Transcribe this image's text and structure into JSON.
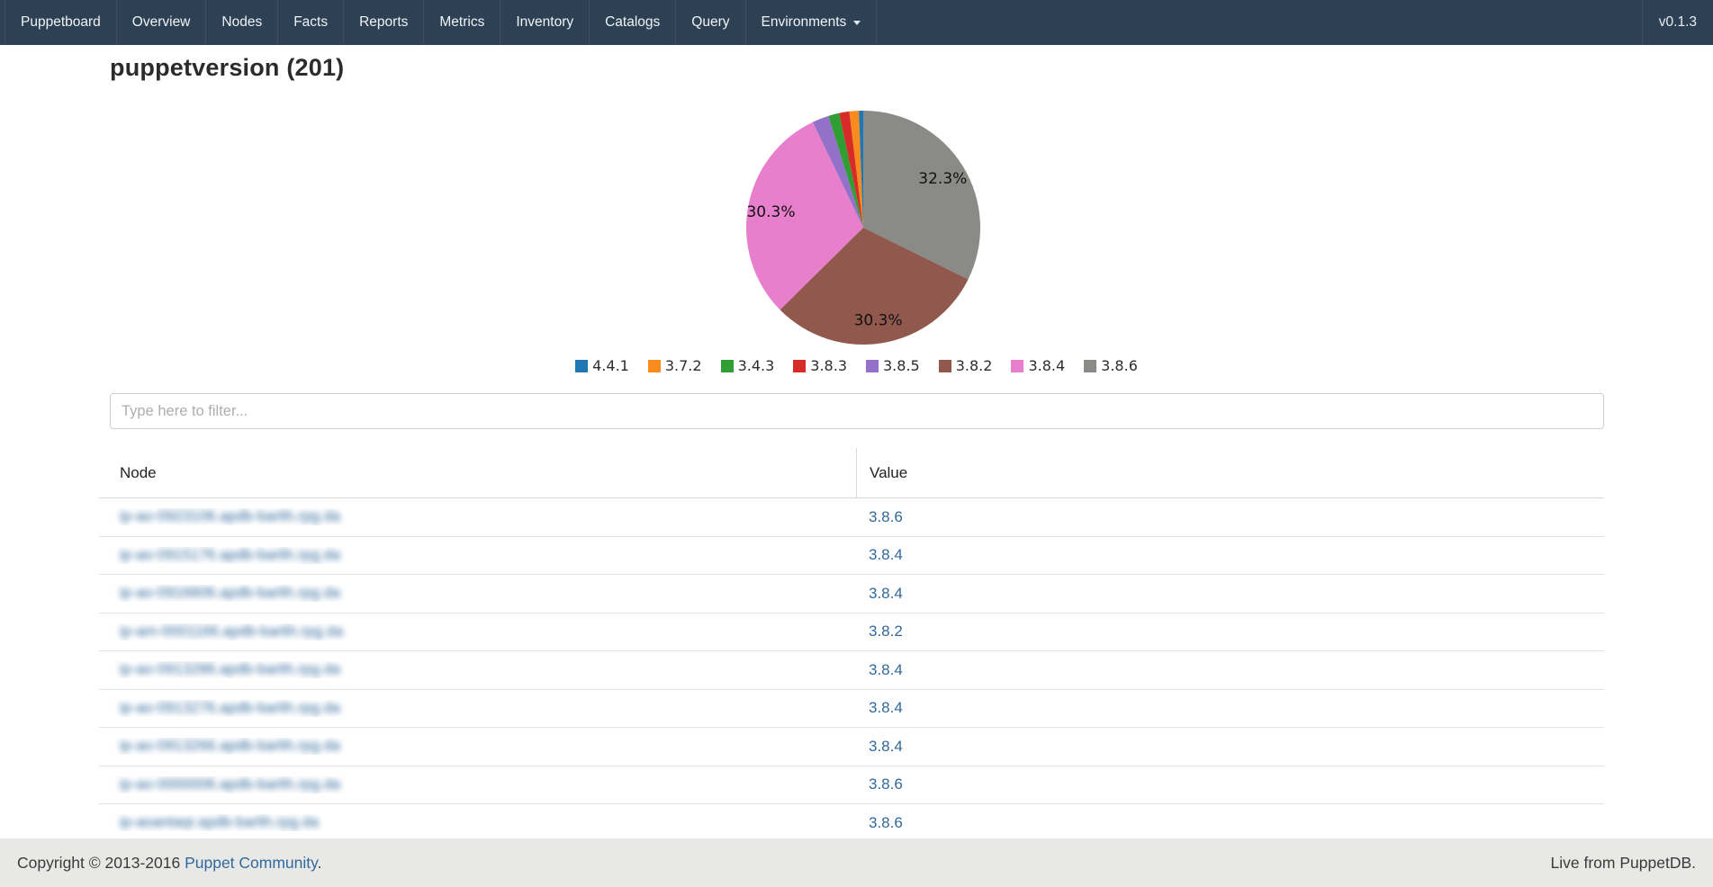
{
  "navbar": {
    "brand": "Puppetboard",
    "items": [
      "Overview",
      "Nodes",
      "Facts",
      "Reports",
      "Metrics",
      "Inventory",
      "Catalogs",
      "Query"
    ],
    "dropdown_label": "Environments",
    "version": "v0.1.3",
    "bg_color": "#2e4154",
    "divider_color": "#3d4e60"
  },
  "page": {
    "title": "puppetversion (201)"
  },
  "chart_data": {
    "type": "pie",
    "title": "",
    "legend_position": "bottom",
    "direction": "clockwise",
    "start_angle_deg": -90,
    "label_radius_fraction": 0.8,
    "slices": [
      {
        "label": "4.4.1",
        "pct": 0.6,
        "color": "#1f77b4",
        "pct_label": null
      },
      {
        "label": "3.7.2",
        "pct": 1.3,
        "color": "#f78b1d",
        "pct_label": null
      },
      {
        "label": "3.4.3",
        "pct": 1.5,
        "color": "#2f9e33",
        "pct_label": null
      },
      {
        "label": "3.8.3",
        "pct": 1.4,
        "color": "#d62b29",
        "pct_label": null
      },
      {
        "label": "3.8.5",
        "pct": 2.3,
        "color": "#9371c8",
        "pct_label": null
      },
      {
        "label": "3.8.2",
        "pct": 30.3,
        "color": "#91584d",
        "pct_label": "30.3%"
      },
      {
        "label": "3.8.4",
        "pct": 30.3,
        "color": "#e87fcc",
        "pct_label": "30.3%"
      },
      {
        "label": "3.8.6",
        "pct": 32.3,
        "color": "#8a8a87",
        "pct_label": "32.3%"
      }
    ],
    "draw_order": [
      7,
      5,
      6,
      4,
      2,
      3,
      1,
      0
    ]
  },
  "filter": {
    "placeholder": "Type here to filter..."
  },
  "table": {
    "columns": [
      "Node",
      "Value"
    ],
    "nodes_redacted": true,
    "link_color": "#31699c",
    "rows": [
      {
        "node_blurred": "ip-ao-0923106.apdb-barlih.rpg.da",
        "value": "3.8.6"
      },
      {
        "node_blurred": "ip-ao-0915176.apdb-barlih.rpg.da",
        "value": "3.8.4"
      },
      {
        "node_blurred": "ip-ao-0916806.apdb-barlih.rpg.da",
        "value": "3.8.4"
      },
      {
        "node_blurred": "ip-am-0001166.apdb-barlih.rpg.da",
        "value": "3.8.2"
      },
      {
        "node_blurred": "ip-ao-0913286.apdb-barlih.rpg.da",
        "value": "3.8.4"
      },
      {
        "node_blurred": "ip-ao-0913276.apdb-barlih.rpg.da",
        "value": "3.8.4"
      },
      {
        "node_blurred": "ip-ao-0913266.apdb-barlih.rpg.da",
        "value": "3.8.4"
      },
      {
        "node_blurred": "ip-ao-0000006.apdb-barlih.rpg.da",
        "value": "3.8.6"
      },
      {
        "node_blurred": "ip-aoantaqr.apdb-barlih.rpg.da",
        "value": "3.8.6"
      }
    ]
  },
  "footer": {
    "copyright_prefix": "Copyright © 2013-2016 ",
    "copyright_link": "Puppet Community",
    "copyright_suffix": ".",
    "right_text": "Live from PuppetDB."
  }
}
